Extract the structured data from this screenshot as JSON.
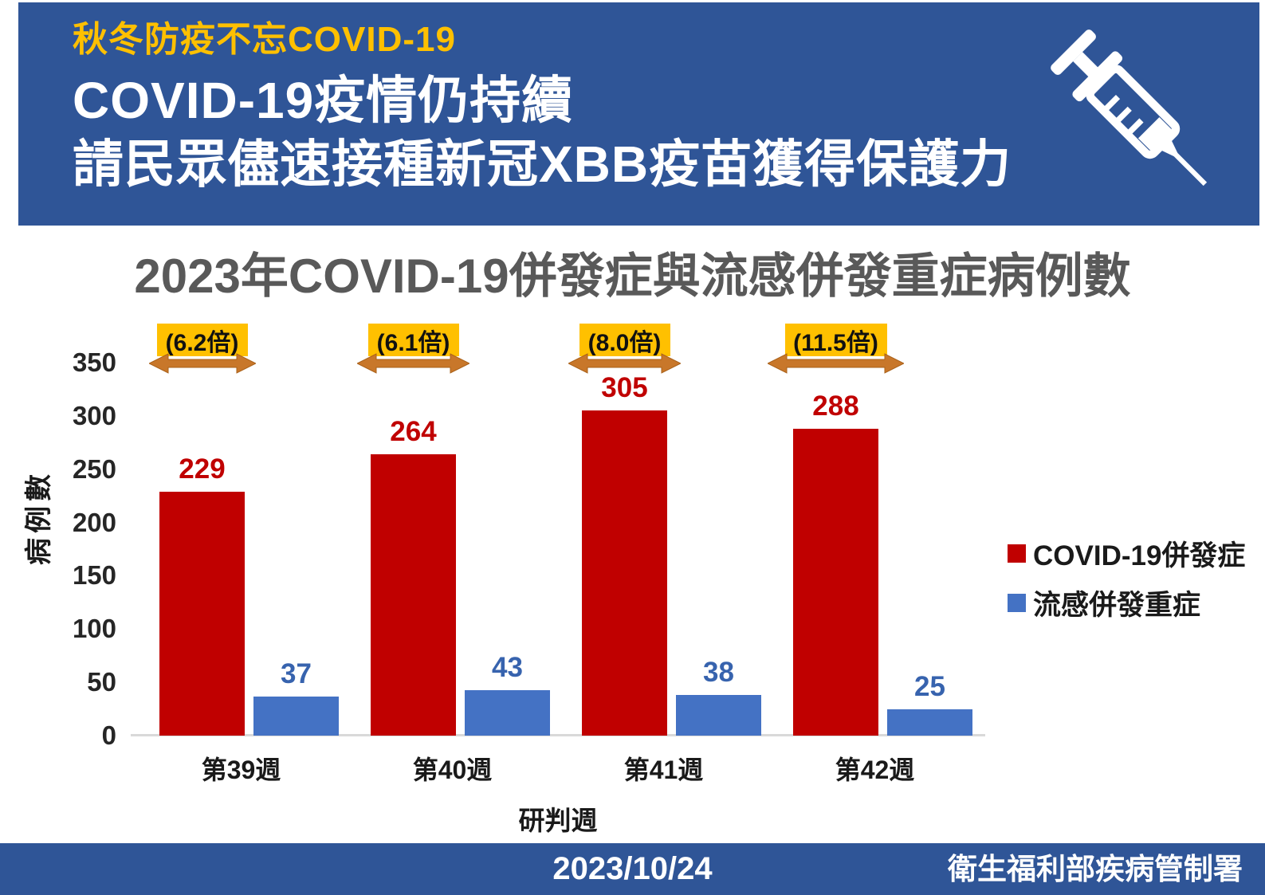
{
  "header": {
    "tagline": "秋冬防疫不忘COVID-19",
    "title_line1": "COVID-19疫情仍持續",
    "title_line2": "請民眾儘速接種新冠XBB疫苗獲得保護力",
    "bg_color": "#2F5597",
    "tagline_color": "#FFC000"
  },
  "chart_data": {
    "type": "bar",
    "title": "2023年COVID-19併發症與流感併發重症病例數",
    "categories": [
      "第39週",
      "第40週",
      "第41週",
      "第42週"
    ],
    "series": [
      {
        "name": "COVID-19併發症",
        "color": "#C00000",
        "label_color": "#C00000",
        "values": [
          229,
          264,
          305,
          288
        ]
      },
      {
        "name": "流感併發重症",
        "color": "#4472C4",
        "label_color": "#3763AE",
        "values": [
          37,
          43,
          38,
          25
        ]
      }
    ],
    "ratio_labels": [
      "(6.2倍)",
      "(6.1倍)",
      "(8.0倍)",
      "(11.5倍)"
    ],
    "ratio_box_color": "#FFC000",
    "ratio_arrow_color": "#C8772A",
    "xlabel": "研判週",
    "ylabel": "病例數",
    "ylim": [
      0,
      350
    ],
    "yticks": [
      350,
      300,
      250,
      200,
      150,
      100,
      50,
      0
    ],
    "grid": false,
    "legend_position": "right",
    "axis_line_color": "#D9D9D9"
  },
  "footer": {
    "date": "2023/10/24",
    "agency": "衛生福利部疾病管制署",
    "bg_color": "#2F5597"
  }
}
